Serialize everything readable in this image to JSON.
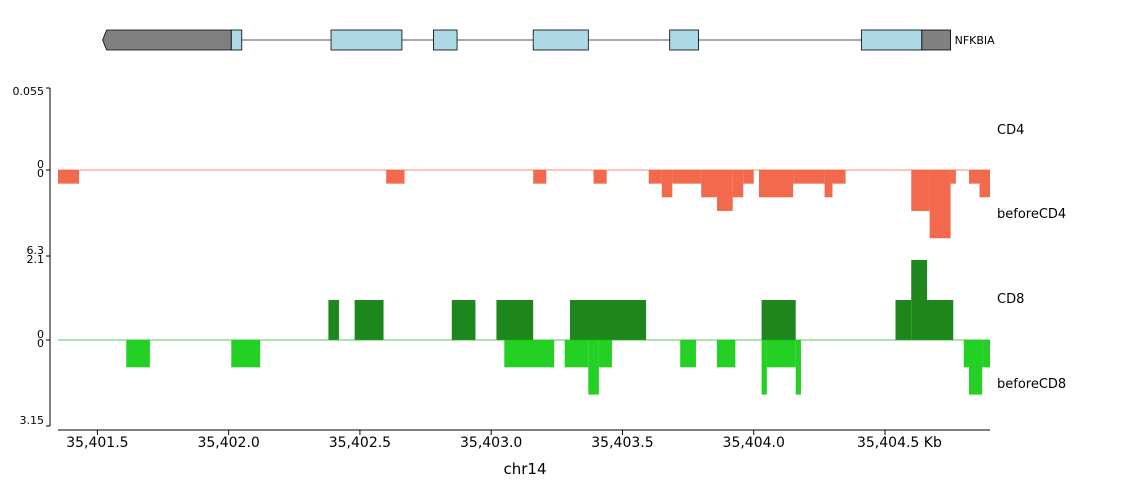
{
  "chart_data": {
    "type": "area",
    "xlabel": "chr14",
    "x_unit": "Kb",
    "xlim": [
      35401.35,
      35404.9
    ],
    "x_ticks": [
      35401.5,
      35402.0,
      35402.5,
      35403.0,
      35403.5,
      35404.0,
      35404.5
    ],
    "x_tick_labels": [
      "35,401.5",
      "35,402.0",
      "35,402.5",
      "35,403.0",
      "35,403.5",
      "35,404.0",
      "35,404.5 Kb"
    ],
    "gene": {
      "name": "NFKBIA",
      "start": 35401.52,
      "end": 35404.75,
      "line_color": "#555555",
      "utr_color": "#808080",
      "exon_color": "#add8e6",
      "utr": [
        [
          35401.52,
          35402.01
        ],
        [
          35404.64,
          35404.75
        ]
      ],
      "exons": [
        [
          35402.01,
          35402.05
        ],
        [
          35402.39,
          35402.66
        ],
        [
          35402.78,
          35402.87
        ],
        [
          35403.16,
          35403.37
        ],
        [
          35403.68,
          35403.79
        ],
        [
          35404.41,
          35404.64
        ]
      ]
    },
    "series": [
      {
        "name": "CD4",
        "color": "#f25c3e",
        "direction": "up",
        "ylim": [
          0,
          0.055
        ],
        "tick_labels": [
          "0.055",
          "0"
        ],
        "segments": []
      },
      {
        "name": "beforeCD4",
        "color": "#f25c3e",
        "direction": "down",
        "ylim": [
          0,
          6.3
        ],
        "tick_labels": [
          "0",
          "6.3"
        ],
        "segments": [
          [
            35401.35,
            35401.43,
            1.0
          ],
          [
            35402.6,
            35402.67,
            1.0
          ],
          [
            35403.16,
            35403.21,
            1.0
          ],
          [
            35403.39,
            35403.44,
            1.0
          ],
          [
            35403.6,
            35403.65,
            1.0
          ],
          [
            35403.65,
            35403.69,
            2.0
          ],
          [
            35403.69,
            35403.8,
            1.0
          ],
          [
            35403.8,
            35403.86,
            2.0
          ],
          [
            35403.86,
            35403.92,
            3.0
          ],
          [
            35403.92,
            35403.96,
            2.0
          ],
          [
            35403.96,
            35404.0,
            1.0
          ],
          [
            35404.02,
            35404.15,
            2.0
          ],
          [
            35404.15,
            35404.27,
            1.0
          ],
          [
            35404.27,
            35404.3,
            2.0
          ],
          [
            35404.3,
            35404.35,
            1.0
          ],
          [
            35404.6,
            35404.67,
            3.0
          ],
          [
            35404.67,
            35404.75,
            5.0
          ],
          [
            35404.75,
            35404.77,
            1.0
          ],
          [
            35404.82,
            35404.86,
            1.0
          ],
          [
            35404.86,
            35404.9,
            2.0
          ]
        ]
      },
      {
        "name": "CD8",
        "color": "#0a7c0a",
        "direction": "up",
        "ylim": [
          0,
          2.1
        ],
        "tick_labels": [
          "2.1",
          "0"
        ],
        "segments": [
          [
            35402.38,
            35402.42,
            1.0
          ],
          [
            35402.48,
            35402.59,
            1.0
          ],
          [
            35402.85,
            35402.94,
            1.0
          ],
          [
            35403.02,
            35403.16,
            1.0
          ],
          [
            35403.3,
            35403.59,
            1.0
          ],
          [
            35404.03,
            35404.16,
            1.0
          ],
          [
            35404.54,
            35404.6,
            1.0
          ],
          [
            35404.6,
            35404.66,
            2.0
          ],
          [
            35404.66,
            35404.76,
            1.0
          ]
        ]
      },
      {
        "name": "beforeCD8",
        "color": "#12cc12",
        "direction": "down",
        "ylim": [
          0,
          3.15
        ],
        "tick_labels": [
          "0",
          "3.15"
        ],
        "segments": [
          [
            35401.61,
            35401.7,
            1.0
          ],
          [
            35402.01,
            35402.12,
            1.0
          ],
          [
            35403.05,
            35403.24,
            1.0
          ],
          [
            35403.28,
            35403.37,
            1.0
          ],
          [
            35403.37,
            35403.41,
            2.0
          ],
          [
            35403.41,
            35403.46,
            1.0
          ],
          [
            35403.72,
            35403.78,
            1.0
          ],
          [
            35403.86,
            35403.93,
            1.0
          ],
          [
            35404.03,
            35404.05,
            2.0
          ],
          [
            35404.05,
            35404.16,
            1.0
          ],
          [
            35404.16,
            35404.18,
            2.0
          ],
          [
            35404.8,
            35404.82,
            1.0
          ],
          [
            35404.82,
            35404.87,
            2.0
          ],
          [
            35404.87,
            35404.9,
            1.0
          ]
        ]
      }
    ]
  }
}
